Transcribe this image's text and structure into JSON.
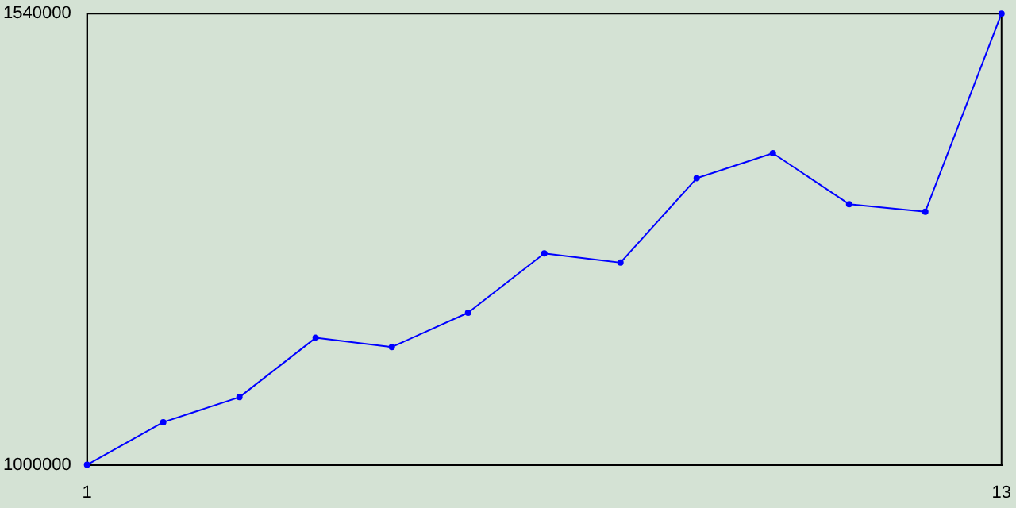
{
  "chart_data": {
    "type": "line",
    "x": [
      1,
      2,
      3,
      4,
      5,
      6,
      7,
      8,
      9,
      10,
      11,
      12,
      13
    ],
    "series": [
      {
        "color": "#0000ff",
        "values": [
          1000000,
          1051000,
          1081000,
          1152000,
          1141000,
          1182000,
          1253000,
          1242000,
          1343000,
          1373000,
          1312000,
          1303000,
          1540000
        ]
      }
    ],
    "xlim": [
      1,
      13
    ],
    "xticks": [
      1,
      13
    ],
    "ylim": [
      1000000,
      1540000
    ],
    "yticks": [
      1000000,
      1540000
    ],
    "grid": false,
    "legend": false,
    "marker": "circle"
  }
}
